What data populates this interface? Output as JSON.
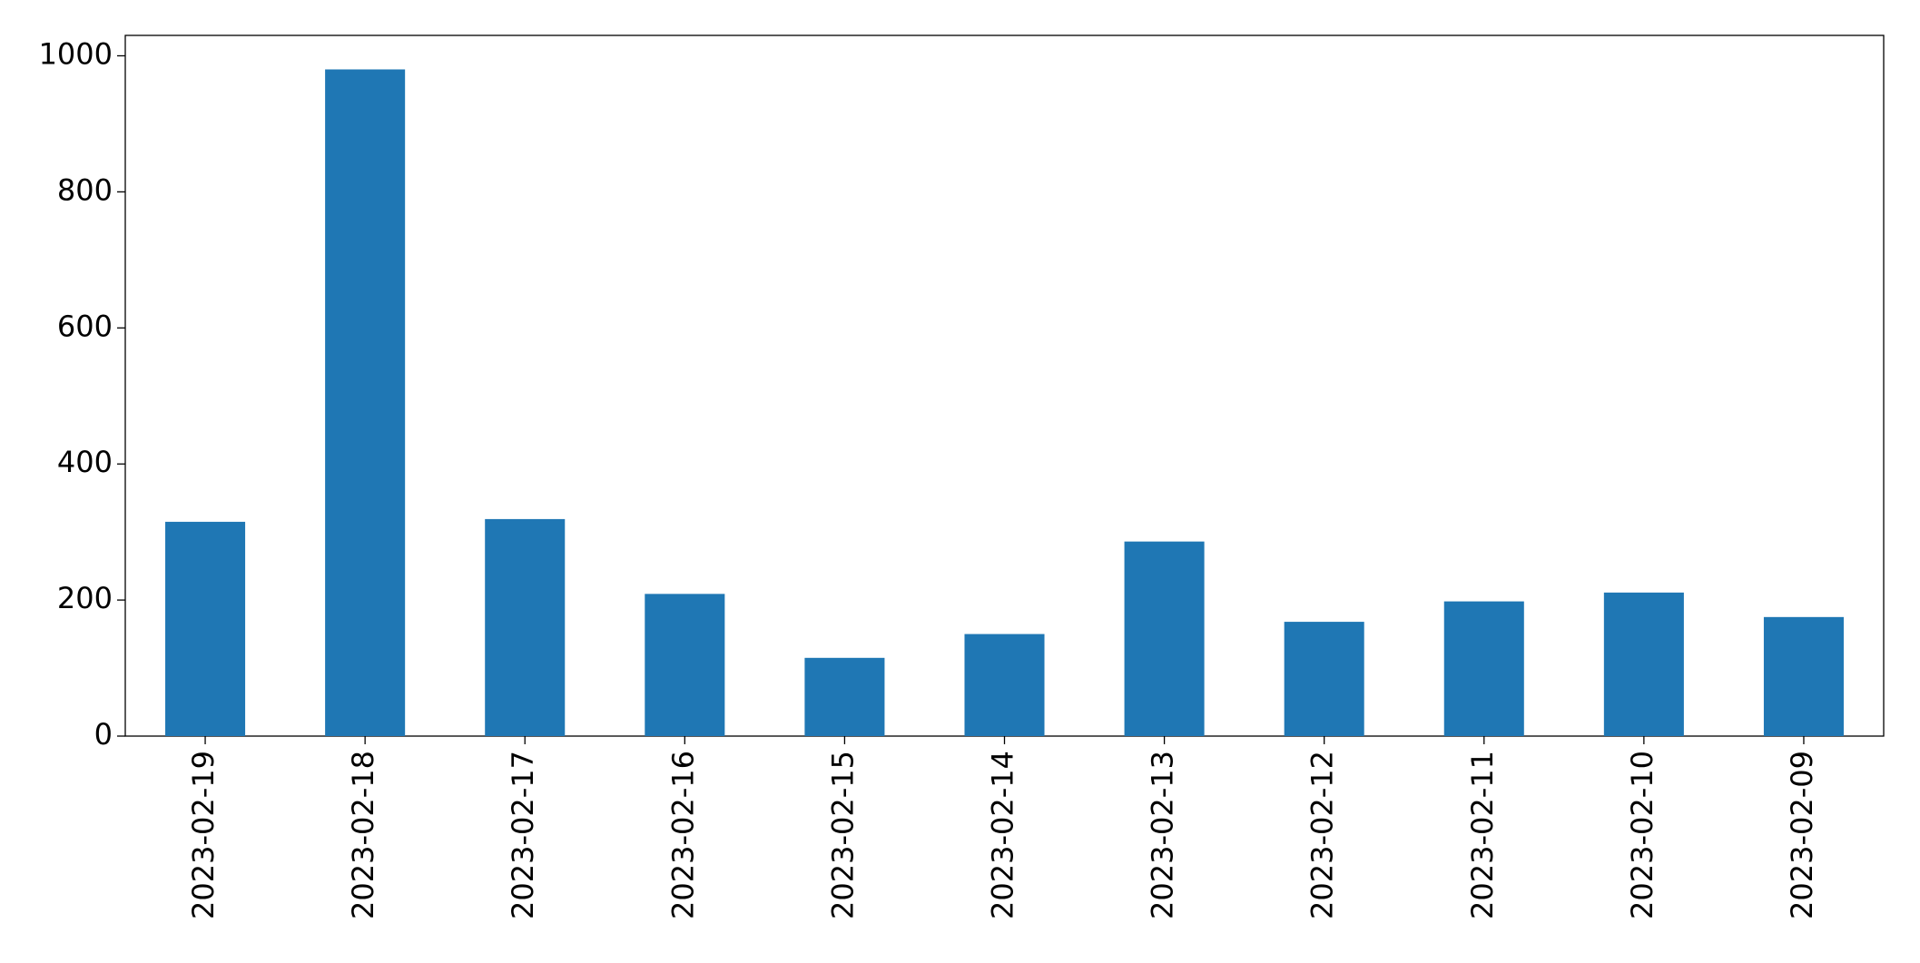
{
  "chart_data": {
    "type": "bar",
    "categories": [
      "2023-02-19",
      "2023-02-18",
      "2023-02-17",
      "2023-02-16",
      "2023-02-15",
      "2023-02-14",
      "2023-02-13",
      "2023-02-12",
      "2023-02-11",
      "2023-02-10",
      "2023-02-09"
    ],
    "values": [
      315,
      980,
      319,
      209,
      115,
      150,
      286,
      168,
      198,
      211,
      175
    ],
    "color": "#1f77b4",
    "ylim": [
      0,
      1030
    ],
    "yticks": [
      0,
      200,
      400,
      600,
      800,
      1000
    ],
    "grid": false
  }
}
